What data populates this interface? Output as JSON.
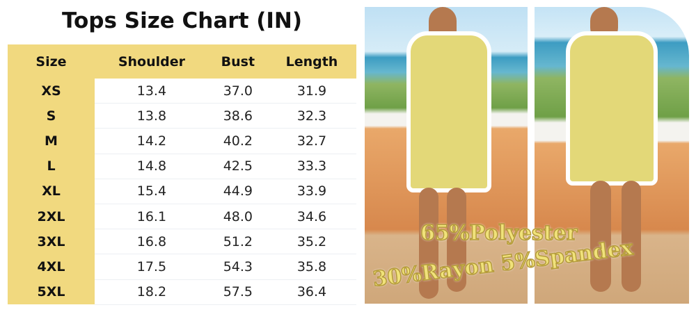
{
  "title": "Tops Size Chart (IN)",
  "table": {
    "headers": [
      "Size",
      "Shoulder",
      "Bust",
      "Length"
    ],
    "rows": [
      [
        "XS",
        "13.4",
        "37.0",
        "31.9"
      ],
      [
        "S",
        "13.8",
        "38.6",
        "32.3"
      ],
      [
        "M",
        "14.2",
        "40.2",
        "32.7"
      ],
      [
        "L",
        "14.8",
        "42.5",
        "33.3"
      ],
      [
        "XL",
        "15.4",
        "44.9",
        "33.9"
      ],
      [
        "2XL",
        "16.1",
        "48.0",
        "34.6"
      ],
      [
        "3XL",
        "16.8",
        "51.2",
        "35.2"
      ],
      [
        "4XL",
        "17.5",
        "54.3",
        "35.8"
      ],
      [
        "5XL",
        "18.2",
        "57.5",
        "36.4"
      ]
    ]
  },
  "material": {
    "line1": "65%Polyester",
    "line2": "30%Rayon 5%Spandex"
  },
  "colors": {
    "header": "#f1d97f",
    "dress": "#e3d878"
  }
}
